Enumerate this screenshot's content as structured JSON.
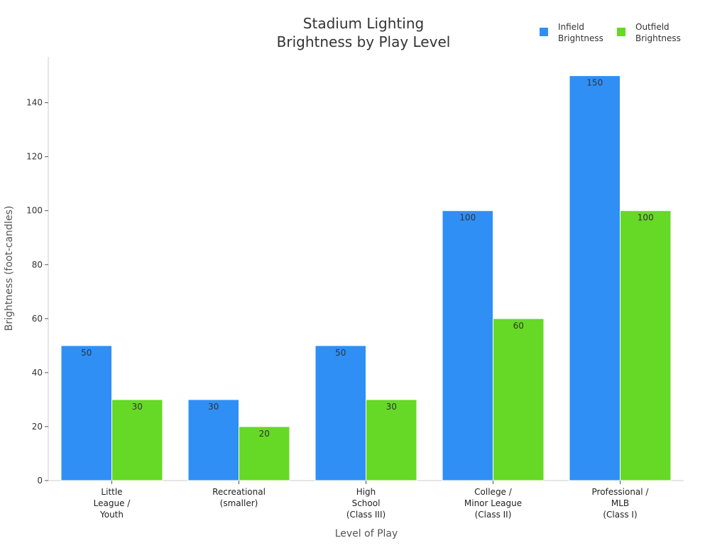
{
  "chart_data": {
    "type": "bar",
    "title_lines": [
      "Stadium Lighting",
      "Brightness by Play Level"
    ],
    "xlabel": "Level of Play",
    "ylabel": "Brightness (foot-candles)",
    "categories": [
      [
        "Little",
        "League /",
        "Youth"
      ],
      [
        "Recreational",
        "(smaller)"
      ],
      [
        "High",
        "School",
        "(Class III)"
      ],
      [
        "College /",
        "Minor League",
        "(Class II)"
      ],
      [
        "Professional /",
        "MLB",
        "(Class I)"
      ]
    ],
    "series": [
      {
        "name_lines": [
          "Infield",
          "Brightness"
        ],
        "color": "#2f8ff5",
        "values": [
          50,
          30,
          50,
          100,
          150
        ]
      },
      {
        "name_lines": [
          "Outfield",
          "Brightness"
        ],
        "color": "#66d926",
        "values": [
          30,
          20,
          30,
          60,
          100
        ]
      }
    ],
    "yticks": [
      0,
      20,
      40,
      60,
      80,
      100,
      120,
      140
    ],
    "ylim": [
      0,
      157
    ],
    "grid": false,
    "legend_position": "top-right"
  }
}
